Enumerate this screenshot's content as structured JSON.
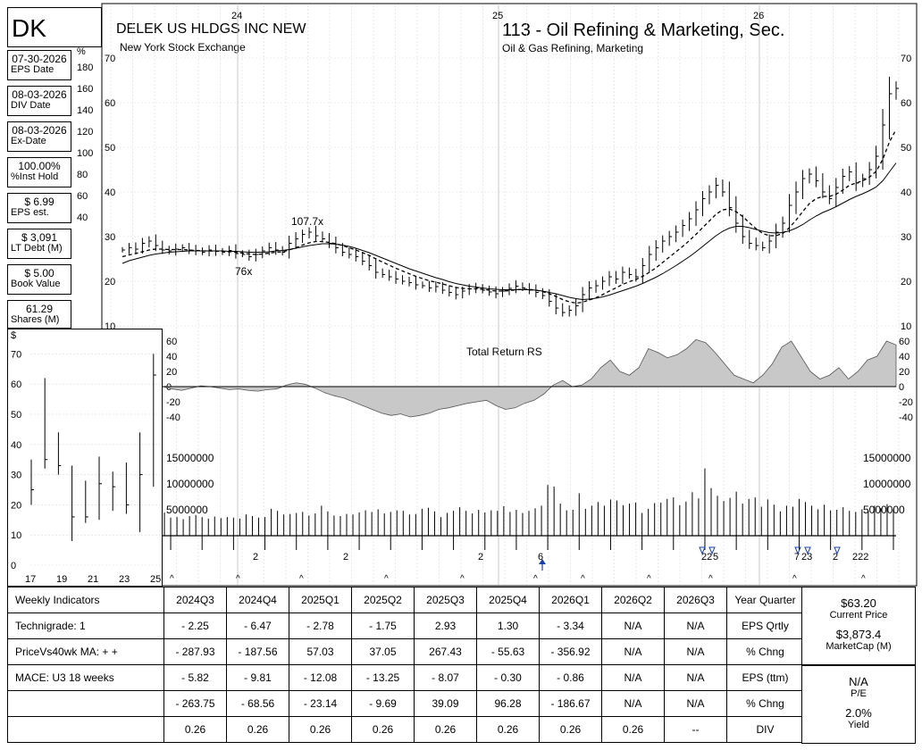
{
  "header": {
    "ticker": "DK",
    "company": "DELEK US HLDGS INC NEW",
    "exchange": "New York Stock Exchange",
    "group": "113 - Oil Refining & Marketing, Sec.",
    "industry": "Oil & Gas Refining, Marketing"
  },
  "sidebar": [
    {
      "value": "07-30-2026",
      "label": "EPS Date"
    },
    {
      "value": "08-03-2026",
      "label": "DIV Date"
    },
    {
      "value": "08-03-2026",
      "label": "Ex-Date"
    },
    {
      "value": "100.00%",
      "label": "%Inst Hold"
    },
    {
      "value": "$ 6.99",
      "label": "EPS est."
    },
    {
      "value": "$ 3,091",
      "label": "LT Debt (M)"
    },
    {
      "value": "$ 5.00",
      "label": "Book Value"
    },
    {
      "value": "61.29",
      "label": "Shares (M)"
    }
  ],
  "chart_data": [
    {
      "type": "line",
      "title": "",
      "x_axis_year_labels": [
        "24",
        "25",
        "26"
      ],
      "ylim": [
        10,
        70
      ],
      "price_ticks": [
        "70",
        "60",
        "50",
        "40",
        "30",
        "20",
        "10"
      ],
      "pct_axis_ticks": [
        "%",
        "180",
        "160",
        "140",
        "120",
        "100",
        "80",
        "60",
        "40"
      ],
      "annotations": [
        "107.7x",
        "76x"
      ],
      "series": [
        {
          "values": [
            27.0,
            27.5,
            27.2,
            28.5,
            29.0,
            28.0,
            27.0,
            26.8,
            27.2,
            27.5,
            27.0,
            26.8,
            26.5,
            27.0,
            26.7,
            26.5,
            26.9,
            26.2,
            26.0,
            25.5,
            26.0,
            26.8,
            27.5,
            27.0,
            26.5,
            28.5,
            29.5,
            30.5,
            31.0,
            30.2,
            29.5,
            28.5,
            27.5,
            26.5,
            26.0,
            25.5,
            24.5,
            23.5,
            22.0,
            21.5,
            21.0,
            20.5,
            20.0,
            19.7,
            19.2,
            19.0,
            18.5,
            18.8,
            18.0,
            17.5,
            17.0,
            17.8,
            18.3,
            18.5,
            18.0,
            17.6,
            17.2,
            17.8,
            18.4,
            18.9,
            18.5,
            18.0,
            17.5,
            16.8,
            15.5,
            14.0,
            13.0,
            13.5,
            14.5,
            17.0,
            18.5,
            19.0,
            20.0,
            21.0,
            20.5,
            22.0,
            21.5,
            21.0,
            23.5,
            26.0,
            27.5,
            29.0,
            30.0,
            31.0,
            32.5,
            34.0,
            36.0,
            38.5,
            40.0,
            41.5,
            40.0,
            36.5,
            33.0,
            30.0,
            28.5,
            28.0,
            27.5,
            29.0,
            31.0,
            33.0,
            37.0,
            40.0,
            43.0,
            44.0,
            42.5,
            40.0,
            38.5,
            41.0,
            43.5,
            44.5,
            42.0,
            43.0,
            45.0,
            48.0,
            55.0,
            62.0,
            63.2
          ]
        },
        {
          "name": "",
          "values": [
            25.5,
            25.9,
            26.2,
            26.6,
            27.0,
            27.2,
            27.2,
            27.1,
            27.1,
            27.1,
            27.0,
            26.9,
            26.8,
            26.8,
            26.7,
            26.7,
            26.6,
            26.5,
            26.3,
            26.1,
            26.0,
            26.1,
            26.3,
            26.5,
            26.6,
            27.0,
            27.5,
            28.1,
            28.6,
            28.9,
            28.9,
            28.7,
            28.4,
            28.0,
            27.5,
            27.0,
            26.4,
            25.8,
            25.0,
            24.3,
            23.6,
            22.9,
            22.3,
            21.7,
            21.1,
            20.6,
            20.1,
            19.8,
            19.4,
            19.0,
            18.6,
            18.4,
            18.3,
            18.3,
            18.2,
            18.0,
            17.8,
            17.8,
            17.9,
            18.1,
            18.2,
            18.2,
            18.0,
            17.7,
            17.2,
            16.6,
            15.9,
            15.4,
            15.1,
            15.3,
            15.8,
            16.3,
            17.0,
            17.8,
            18.5,
            19.3,
            19.9,
            20.4,
            21.1,
            22.0,
            23.0,
            24.2,
            25.4,
            26.6,
            27.8,
            29.1,
            30.5,
            32.0,
            33.5,
            35.0,
            36.0,
            36.2,
            35.6,
            34.5,
            33.1,
            31.8,
            30.7,
            30.2,
            30.2,
            30.7,
            32.0,
            33.7,
            35.6,
            37.4,
            38.5,
            39.0,
            39.0,
            39.5,
            40.4,
            41.5,
            42.0,
            42.5,
            43.3,
            44.6,
            47.3,
            51.2,
            54.0
          ]
        },
        {
          "name": "",
          "values": [
            24.0,
            24.6,
            25.0,
            25.4,
            25.8,
            26.1,
            26.3,
            26.5,
            26.6,
            26.7,
            26.8,
            26.8,
            26.8,
            26.8,
            26.8,
            26.8,
            26.7,
            26.7,
            26.6,
            26.5,
            26.5,
            26.5,
            26.6,
            26.8,
            26.9,
            27.1,
            27.4,
            27.7,
            28.0,
            28.2,
            28.4,
            28.4,
            28.3,
            28.1,
            27.8,
            27.4,
            26.9,
            26.4,
            25.8,
            25.2,
            24.6,
            24.0,
            23.4,
            22.8,
            22.3,
            21.8,
            21.3,
            20.8,
            20.4,
            19.9,
            19.5,
            19.2,
            18.9,
            18.7,
            18.5,
            18.3,
            18.2,
            18.1,
            18.1,
            18.1,
            18.1,
            18.1,
            18.0,
            17.8,
            17.5,
            17.2,
            16.8,
            16.4,
            16.1,
            15.9,
            16.0,
            16.2,
            16.5,
            16.9,
            17.4,
            17.9,
            18.4,
            18.9,
            19.5,
            20.2,
            20.9,
            21.7,
            22.6,
            23.5,
            24.5,
            25.5,
            26.6,
            27.8,
            29.0,
            30.2,
            31.2,
            31.9,
            32.3,
            32.3,
            32.0,
            31.6,
            31.2,
            30.9,
            30.8,
            30.9,
            31.3,
            31.9,
            32.7,
            33.7,
            34.6,
            35.4,
            36.0,
            36.7,
            37.5,
            38.3,
            39.0,
            39.6,
            40.3,
            41.1,
            42.5,
            44.5,
            46.5
          ]
        }
      ]
    },
    {
      "type": "area",
      "title": "Total Return RS",
      "ylim": [
        -40,
        60
      ],
      "y_ticks": [
        "60",
        "40",
        "20",
        "0",
        "-20",
        "-40"
      ],
      "values": [
        0,
        -3,
        -5,
        -2,
        1,
        0,
        -2,
        -4,
        -3,
        -5,
        -6,
        -4,
        -3,
        2,
        5,
        3,
        -2,
        -8,
        -12,
        -15,
        -20,
        -25,
        -30,
        -35,
        -38,
        -36,
        -40,
        -38,
        -35,
        -30,
        -28,
        -25,
        -22,
        -20,
        -18,
        -25,
        -30,
        -28,
        -22,
        -18,
        -10,
        2,
        8,
        0,
        2,
        10,
        25,
        35,
        20,
        15,
        25,
        50,
        45,
        38,
        42,
        50,
        62,
        58,
        45,
        30,
        15,
        10,
        5,
        15,
        30,
        52,
        60,
        40,
        20,
        10,
        15,
        25,
        10,
        20,
        35,
        40,
        60,
        55
      ]
    },
    {
      "type": "bar",
      "title": "",
      "ylim": [
        0,
        15000000
      ],
      "y_ticks": [
        "15000000",
        "10000000",
        "5000000"
      ],
      "values": [
        4500000,
        3500000,
        3600000,
        3200000,
        3800000,
        4000000,
        3600000,
        3300000,
        3700000,
        3400000,
        3600000,
        3500000,
        3300000,
        4100000,
        3800000,
        3500000,
        3600000,
        5200000,
        4800000,
        4100000,
        4200000,
        4400000,
        4600000,
        3900000,
        4300000,
        5800000,
        4700000,
        3900000,
        3800000,
        4200000,
        4100000,
        4500000,
        4900000,
        4600000,
        5100000,
        4300000,
        4600000,
        4900000,
        4800000,
        4100000,
        4200000,
        5200000,
        5400000,
        4700000,
        3600000,
        4400000,
        4800000,
        5500000,
        4800000,
        4300000,
        5000000,
        4500000,
        4900000,
        4800000,
        5700000,
        4600000,
        5000000,
        4400000,
        4800000,
        5300000,
        5800000,
        9800000,
        9500000,
        6200000,
        4900000,
        5000000,
        8200000,
        5200000,
        5800000,
        6500000,
        5800000,
        7000000,
        6800000,
        5900000,
        6200000,
        6400000,
        4400000,
        5200000,
        6300000,
        6400000,
        7100000,
        7400000,
        5900000,
        6600000,
        8400000,
        7200000,
        13000000,
        9200000,
        7700000,
        6700000,
        7300000,
        8500000,
        6200000,
        7100000,
        7400000,
        5600000,
        7000000,
        6000000,
        4700000,
        5800000,
        5600000,
        7100000,
        6500000,
        5800000,
        5100000,
        6000000,
        4900000,
        5000000,
        5500000,
        4800000,
        4600000,
        5100000,
        4800000,
        5800000,
        5300000,
        6100000,
        5100000
      ],
      "markers": [
        "2",
        "2",
        "2",
        "6",
        "22",
        "5",
        "7",
        "23",
        "2",
        "222"
      ]
    },
    {
      "type": "bar",
      "title": "",
      "ylim": [
        0,
        70
      ],
      "y_ticks": [
        "$",
        "70",
        "60",
        "50",
        "40",
        "30",
        "20",
        "10",
        "0"
      ],
      "x_ticks": [
        "17",
        "19",
        "21",
        "23",
        "25"
      ],
      "bars": [
        {
          "low": 20,
          "high": 35,
          "close": 25
        },
        {
          "low": 32,
          "high": 62,
          "close": 35
        },
        {
          "low": 30,
          "high": 44,
          "close": 33
        },
        {
          "low": 8,
          "high": 33,
          "close": 16
        },
        {
          "low": 14,
          "high": 28,
          "close": 16
        },
        {
          "low": 15,
          "high": 36,
          "close": 27
        },
        {
          "low": 18,
          "high": 31,
          "close": 26
        },
        {
          "low": 17,
          "high": 34,
          "close": 20
        },
        {
          "low": 11,
          "high": 44,
          "close": 30
        },
        {
          "low": 26,
          "high": 70,
          "close": 63
        }
      ]
    }
  ],
  "table": {
    "header_label": "Weekly Indicators",
    "period_cols": [
      "2024Q3",
      "2024Q4",
      "2025Q1",
      "2025Q2",
      "2025Q3",
      "2025Q4",
      "2026Q1",
      "2026Q2",
      "2026Q3"
    ],
    "last_col_header": "Year Quarter",
    "rows": [
      {
        "label": "Technigrade: 1",
        "cells": [
          "- 2.25",
          "- 6.47",
          "- 2.78",
          "- 1.75",
          "2.93",
          "1.30",
          "- 3.34",
          "N/A",
          "N/A"
        ],
        "right": "EPS Qrtly"
      },
      {
        "label": "PriceVs40wk MA:  + +",
        "cells": [
          "- 287.93",
          "- 187.56",
          "57.03",
          "37.05",
          "267.43",
          "- 55.63",
          "- 356.92",
          "N/A",
          "N/A"
        ],
        "right": "% Chng"
      },
      {
        "label": "MACE: U3  18 weeks",
        "cells": [
          "- 5.82",
          "- 9.81",
          "- 12.08",
          "- 13.25",
          "- 8.07",
          "- 0.30",
          "- 0.86",
          "N/A",
          "N/A"
        ],
        "right": "EPS (ttm)"
      },
      {
        "label": "",
        "cells": [
          "- 263.75",
          "- 68.56",
          "- 23.14",
          "- 9.69",
          "39.09",
          "96.28",
          "- 186.67",
          "N/A",
          "N/A"
        ],
        "right": "% Chng"
      },
      {
        "label": "",
        "cells": [
          "0.26",
          "0.26",
          "0.26",
          "0.26",
          "0.26",
          "0.26",
          "0.26",
          "0.26",
          "--"
        ],
        "right": "DIV"
      }
    ]
  },
  "right_panel": {
    "price": "$63.20",
    "price_label": "Current Price",
    "mcap": "$3,873.4",
    "mcap_label": "MarketCap (M)",
    "pe": "N/A",
    "pe_label": "P/E",
    "yield": "2.0%",
    "yield_label": "Yield"
  },
  "colors": {
    "rs_fill": "#c8c8c8",
    "grid": "#d9d9d9"
  }
}
